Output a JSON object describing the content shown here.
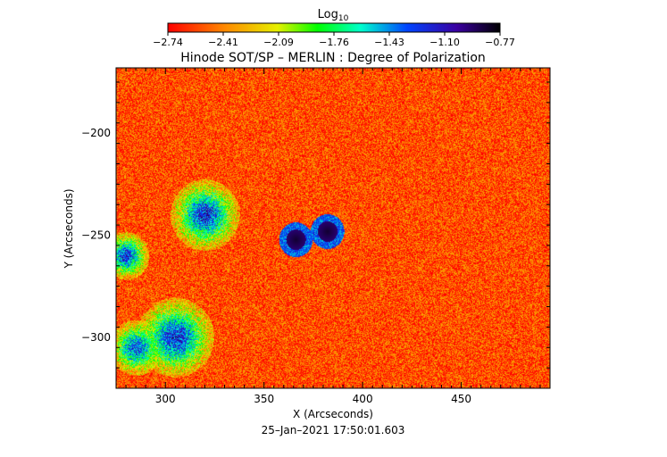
{
  "chart_data": {
    "type": "heatmap",
    "title": "Hinode SOT/SP – MERLIN : Degree of Polarization",
    "xlabel": "X (Arcseconds)",
    "ylabel": "Y (Arcseconds)",
    "timestamp": "25–Jan–2021 17:50:01.603",
    "xlim": [
      275,
      495
    ],
    "ylim": [
      -325,
      -168
    ],
    "xticks": [
      300,
      350,
      400,
      450
    ],
    "yticks": [
      -200,
      -250,
      -300
    ],
    "colorbar": {
      "title_base": "Log",
      "title_sub": "10",
      "range": [
        -2.74,
        -0.77
      ],
      "ticks": [
        "−2.74",
        "−2.41",
        "−2.09",
        "−1.76",
        "−1.43",
        "−1.10",
        "−0.77"
      ],
      "colormap": "rainbow"
    },
    "background_level": -2.55,
    "features": [
      {
        "name": "sunspot",
        "x": 382,
        "y": -248,
        "level": -0.85,
        "r": 5
      },
      {
        "name": "sunspot",
        "x": 366,
        "y": -252,
        "level": -0.85,
        "r": 5
      },
      {
        "name": "plage",
        "x": 320,
        "y": -240,
        "level": -1.2,
        "r": 9
      },
      {
        "name": "plage",
        "x": 305,
        "y": -300,
        "level": -1.2,
        "r": 10
      },
      {
        "name": "plage",
        "x": 280,
        "y": -260,
        "level": -1.25,
        "r": 6
      },
      {
        "name": "plage",
        "x": 285,
        "y": -305,
        "level": -1.3,
        "r": 7
      }
    ]
  }
}
